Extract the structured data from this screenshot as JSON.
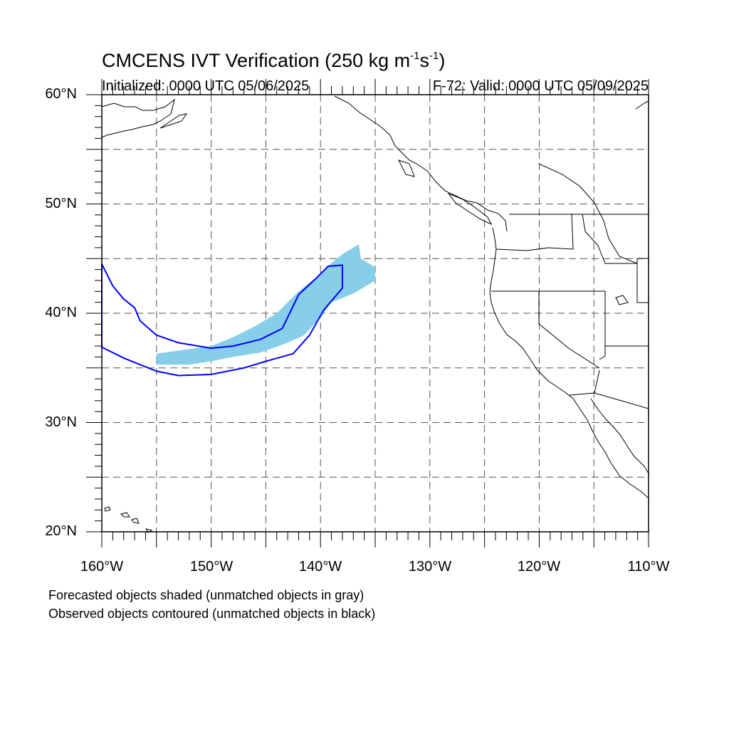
{
  "title": {
    "text": "CMCENS IVT Verification (250 kg m",
    "sup1": "-1",
    "mid": "s",
    "sup2": "-1",
    "end": ")"
  },
  "subtitle_left": "Initialized: 0000 UTC 05/06/2025",
  "subtitle_right": "F-72: Valid: 0000 UTC 05/09/2025",
  "lat_labels": [
    "60°N",
    "50°N",
    "40°N",
    "30°N",
    "20°N"
  ],
  "lon_labels": [
    "160°W",
    "150°W",
    "140°W",
    "130°W",
    "120°W",
    "110°W"
  ],
  "notes": [
    "Forecasted objects shaded (unmatched objects in gray)",
    "Observed objects contoured (unmatched objects in black)"
  ],
  "map": {
    "lon_range": [
      -160,
      -110
    ],
    "lat_range": [
      20,
      60
    ],
    "grid_interval_deg": 5,
    "forecast_fill_color": "#87ceeb",
    "observed_contour_color": "#0000ff",
    "forecast_object": [
      [
        -155,
        35.3
      ],
      [
        -155,
        36.3
      ],
      [
        -150,
        37
      ],
      [
        -148,
        37.8
      ],
      [
        -146,
        38.8
      ],
      [
        -144,
        40
      ],
      [
        -142,
        42
      ],
      [
        -140,
        43.6
      ],
      [
        -139,
        44.6
      ],
      [
        -138,
        45.4
      ],
      [
        -136.5,
        46.3
      ],
      [
        -136.3,
        45
      ],
      [
        -135,
        44.2
      ],
      [
        -135,
        43
      ],
      [
        -137,
        41.8
      ],
      [
        -139,
        41
      ],
      [
        -140,
        39.6
      ],
      [
        -141.5,
        38
      ],
      [
        -143,
        37.3
      ],
      [
        -145.5,
        36.4
      ],
      [
        -148,
        36
      ],
      [
        -150,
        35.6
      ],
      [
        -152,
        35.3
      ]
    ],
    "observed_object": [
      [
        -160,
        44.5
      ],
      [
        -159,
        42.5
      ],
      [
        -158,
        41.3
      ],
      [
        -157,
        40.5
      ],
      [
        -156.5,
        39.3
      ],
      [
        -155,
        38
      ],
      [
        -153,
        37.3
      ],
      [
        -150,
        36.8
      ],
      [
        -148,
        37
      ],
      [
        -145.5,
        37.6
      ],
      [
        -143.5,
        38.6
      ],
      [
        -142,
        41.7
      ],
      [
        -140.5,
        43.1
      ],
      [
        -139.3,
        44.3
      ],
      [
        -138,
        44.4
      ],
      [
        -138,
        42.3
      ],
      [
        -139.7,
        40.3
      ],
      [
        -141,
        38
      ],
      [
        -142.5,
        36.3
      ],
      [
        -145,
        35.6
      ],
      [
        -147,
        35
      ],
      [
        -150,
        34.4
      ],
      [
        -153,
        34.3
      ],
      [
        -155,
        34.7
      ],
      [
        -158,
        35.9
      ],
      [
        -160,
        36.9
      ]
    ]
  }
}
